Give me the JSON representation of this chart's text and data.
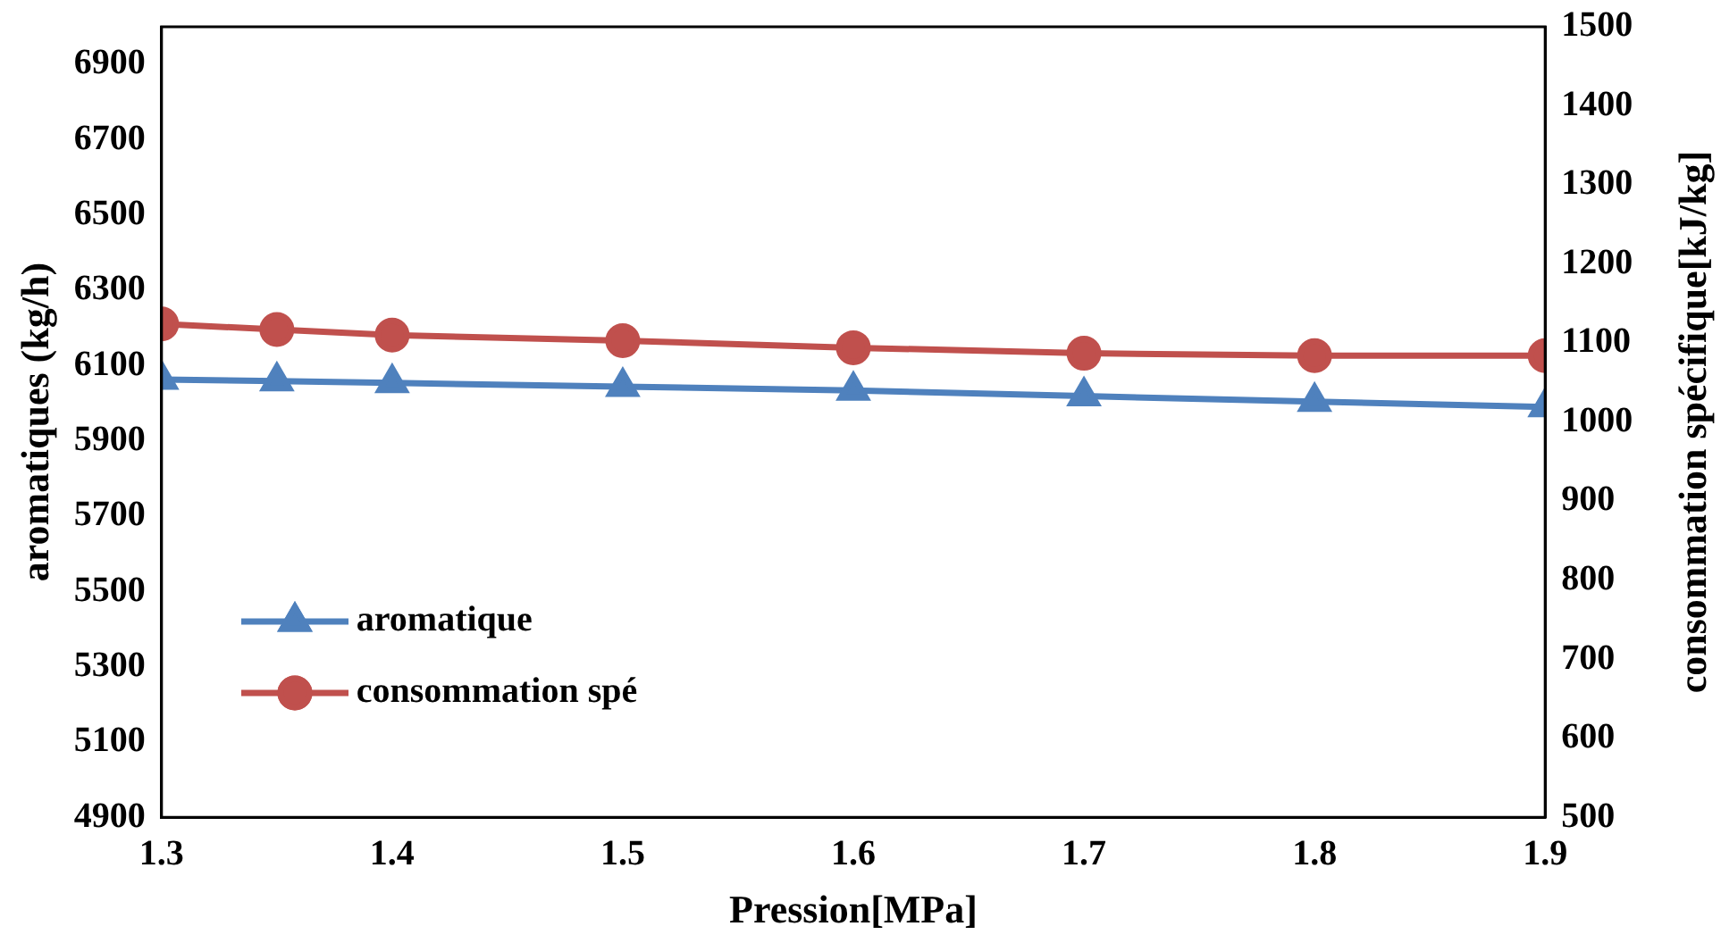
{
  "chart_data": {
    "type": "line",
    "xlabel": "Pression[MPa]",
    "ylabel": "aromatiques (kg/h)",
    "y2label": "consommation spécifique[kJ/kg]",
    "x": [
      1.3,
      1.35,
      1.4,
      1.5,
      1.6,
      1.7,
      1.8,
      1.9
    ],
    "series": [
      {
        "name": "aromatique",
        "color": "#4f81bd",
        "marker": "triangle",
        "values": [
          6063,
          6059,
          6054,
          6044,
          6034,
          6019,
          6004,
          5990
        ]
      },
      {
        "name": "consommation spé",
        "color": "#c0504d",
        "marker": "circle",
        "axis": "y2",
        "values": [
          1124,
          1117,
          1110,
          1103,
          1094,
          1087,
          1084,
          1084
        ]
      }
    ],
    "xlim": [
      1.3,
      1.9
    ],
    "xticks": [
      1.3,
      1.4,
      1.5,
      1.6,
      1.7,
      1.8,
      1.9
    ],
    "ylim": [
      4900,
      7000
    ],
    "yticks": [
      4900,
      5100,
      5300,
      5500,
      5700,
      5900,
      6100,
      6300,
      6500,
      6700,
      6900
    ],
    "y2lim": [
      500,
      1500
    ],
    "y2ticks": [
      500,
      600,
      700,
      800,
      900,
      1000,
      1100,
      1200,
      1300,
      1400,
      1500
    ],
    "grid": false,
    "legend": "bottom left"
  }
}
